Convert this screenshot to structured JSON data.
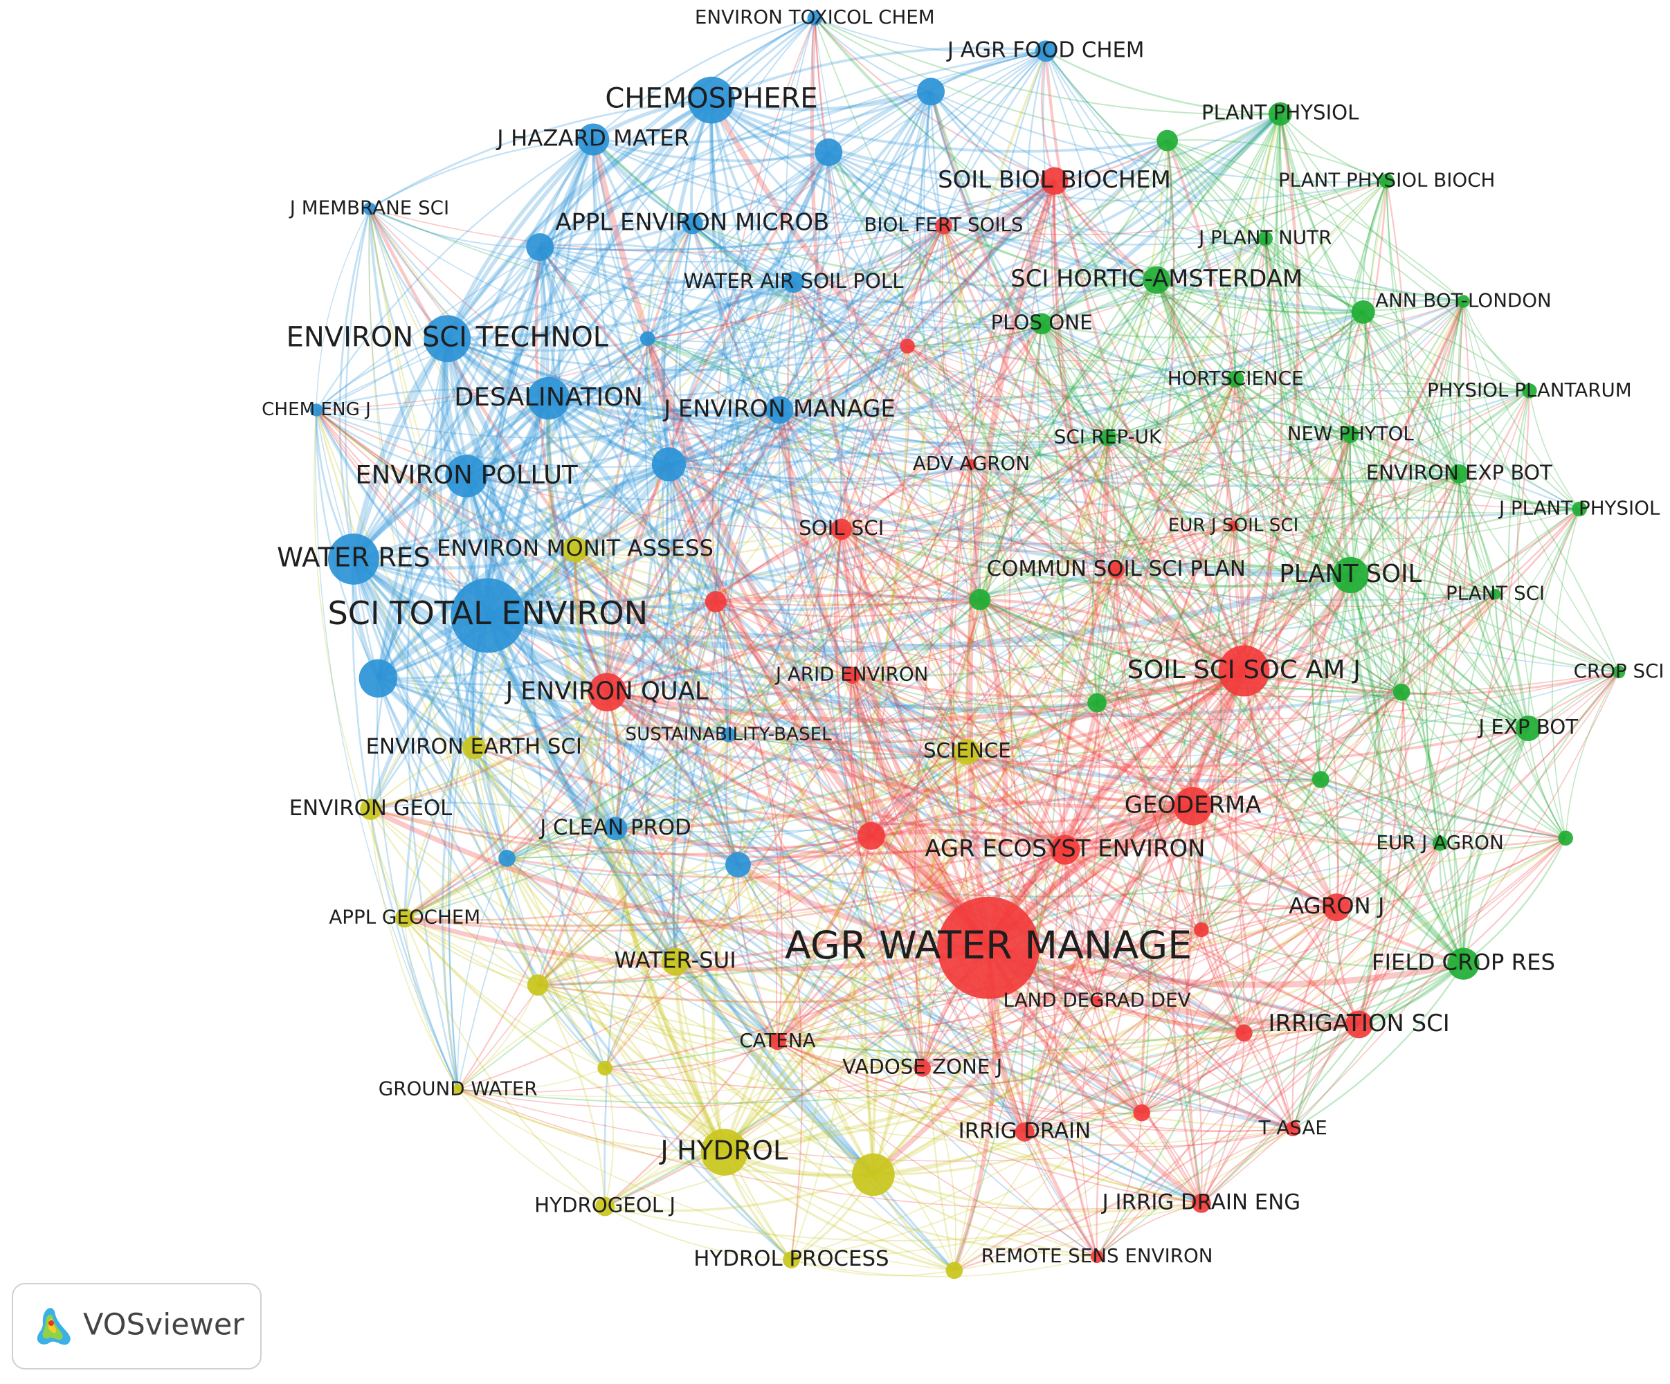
{
  "clusters": [
    {
      "color": "#2b93d6",
      "nodes": [
        "ENVIRON TOXICOL CHEM",
        "J AGR FOOD CHEM",
        "CHEMOSPHERE",
        "J HAZARD MATER",
        "J MEMBRANE SCI",
        "APPL ENVIRON MICROB",
        "WATER AIR SOIL POLL",
        "ENVIRON SCI TECHNOL",
        "DESALINATION",
        "CHEM ENG J",
        "J ENVIRON MANAGE",
        "ENVIRON POLLUT",
        "WATER RES",
        "SCI TOTAL ENVIRON",
        "SUSTAINABILITY-BASEL",
        "J CLEAN PROD"
      ]
    },
    {
      "color": "#c9c61c",
      "nodes": [
        "ENVIRON MONIT ASSESS",
        "ENVIRON EARTH SCI",
        "SCIENCE",
        "ENVIRON GEOL",
        "APPL GEOCHEM",
        "WATER-SUI",
        "GROUND WATER",
        "J HYDROL",
        "HYDROGEOL J",
        "HYDROL PROCESS"
      ]
    },
    {
      "color": "#f23b3b",
      "nodes": [
        "SOIL BIOL BIOCHEM",
        "BIOL FERT SOILS",
        "ADV AGRON",
        "SOIL SCI",
        "J ENVIRON QUAL",
        "J ARID ENVIRON",
        "EUR J SOIL SCI",
        "COMMUN SOIL SCI PLAN",
        "SOIL SCI SOC AM J",
        "GEODERMA",
        "AGR ECOSYST ENVIRON",
        "AGRON J",
        "AGR WATER MANAGE",
        "LAND DEGRAD DEV",
        "IRRIGATION SCI",
        "CATENA",
        "VADOSE ZONE J",
        "IRRIG DRAIN",
        "T ASAE",
        "J IRRIG DRAIN ENG",
        "REMOTE SENS ENVIRON"
      ]
    },
    {
      "color": "#1fae34",
      "nodes": [
        "PLANT PHYSIOL",
        "PLANT PHYSIOL BIOCH",
        "J PLANT NUTR",
        "SCI HORTIC-AMSTERDAM",
        "ANN BOT-LONDON",
        "PLOS ONE",
        "HORTSCIENCE",
        "PHYSIOL PLANTARUM",
        "NEW PHYTOL",
        "SCI REP-UK",
        "ENVIRON EXP BOT",
        "J PLANT PHYSIOL",
        "PLANT SOIL",
        "PLANT SCI",
        "CROP SCI",
        "J EXP BOT",
        "EUR J AGRON",
        "FIELD CROP RES"
      ]
    }
  ],
  "watermark": "VOSviewer"
}
